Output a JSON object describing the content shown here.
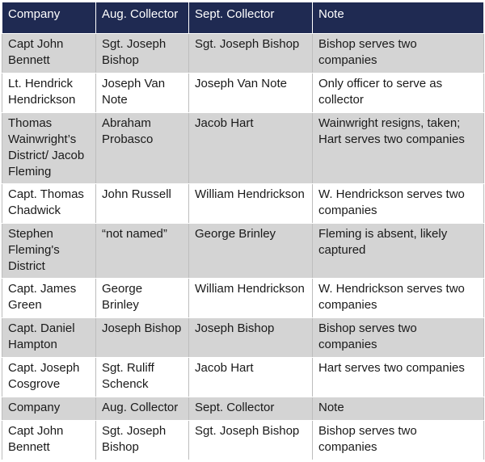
{
  "table": {
    "headers": [
      "Company",
      "Aug. Collector",
      "Sept. Collector",
      "Note"
    ],
    "rows": [
      [
        "Capt John Bennett",
        "Sgt. Joseph Bishop",
        "Sgt. Joseph Bishop",
        "Bishop serves two companies"
      ],
      [
        "Lt. Hendrick Hendrickson",
        "Joseph Van Note",
        "Joseph Van Note",
        "Only officer to serve as collector"
      ],
      [
        "Thomas Wainwright’s District/ Jacob Fleming",
        "Abraham Probasco",
        "Jacob Hart",
        "Wainwright resigns, taken; Hart serves two companies"
      ],
      [
        "Capt. Thomas Chadwick",
        "John Russell",
        "William Hendrickson",
        "W. Hendrickson serves two companies"
      ],
      [
        "Stephen Fleming's District",
        "“not named”",
        "George Brinley",
        "Fleming is absent, likely captured"
      ],
      [
        "Capt. James Green",
        "George Brinley",
        "William Hendrickson",
        "W. Hendrickson serves two companies"
      ],
      [
        "Capt. Daniel Hampton",
        "Joseph Bishop",
        "Joseph Bishop",
        "Bishop serves two companies"
      ],
      [
        "Capt. Joseph Cosgrove",
        "Sgt. Ruliff Schenck",
        "Jacob Hart",
        "Hart serves two companies"
      ],
      [
        "Company",
        "Aug. Collector",
        "Sept. Collector",
        "Note"
      ],
      [
        "Capt John Bennett",
        "Sgt. Joseph Bishop",
        "Sgt. Joseph Bishop",
        "Bishop serves two companies"
      ]
    ]
  },
  "colors": {
    "header_bg": "#1f2a52",
    "header_text": "#ffffff",
    "row_shade": "#d4d4d4",
    "row_white": "#ffffff"
  }
}
